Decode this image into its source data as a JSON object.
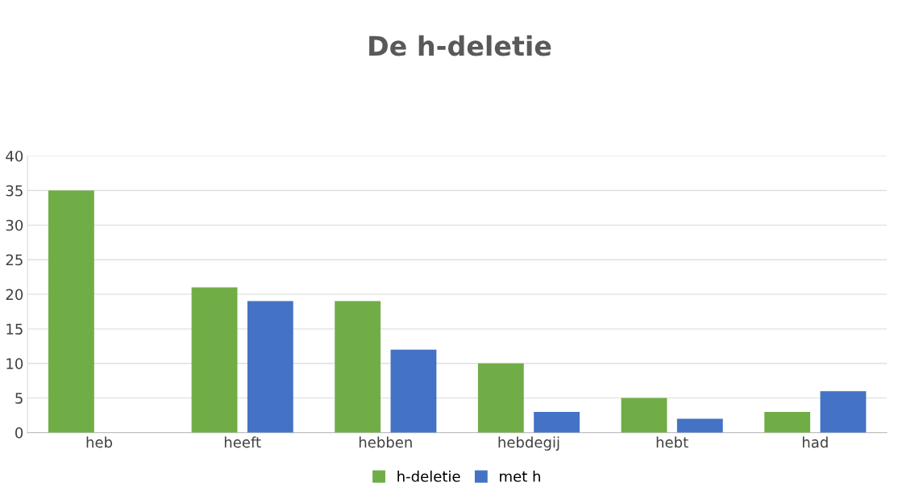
{
  "chart_data": {
    "type": "bar",
    "title": "De h-deletie",
    "categories": [
      "heb",
      "heeft",
      "hebben",
      "hebdegij",
      "hebt",
      "had"
    ],
    "series": [
      {
        "name": "h-deletie",
        "color": "#70ad47",
        "values": [
          35,
          21,
          19,
          10,
          5,
          3
        ]
      },
      {
        "name": "met h",
        "color": "#4472c4",
        "values": [
          0,
          19,
          12,
          3,
          2,
          6
        ]
      }
    ],
    "ylim": [
      0,
      40
    ],
    "yticks": [
      0,
      5,
      10,
      15,
      20,
      25,
      30,
      35,
      40
    ],
    "grid": "y",
    "legend": "bottom"
  }
}
